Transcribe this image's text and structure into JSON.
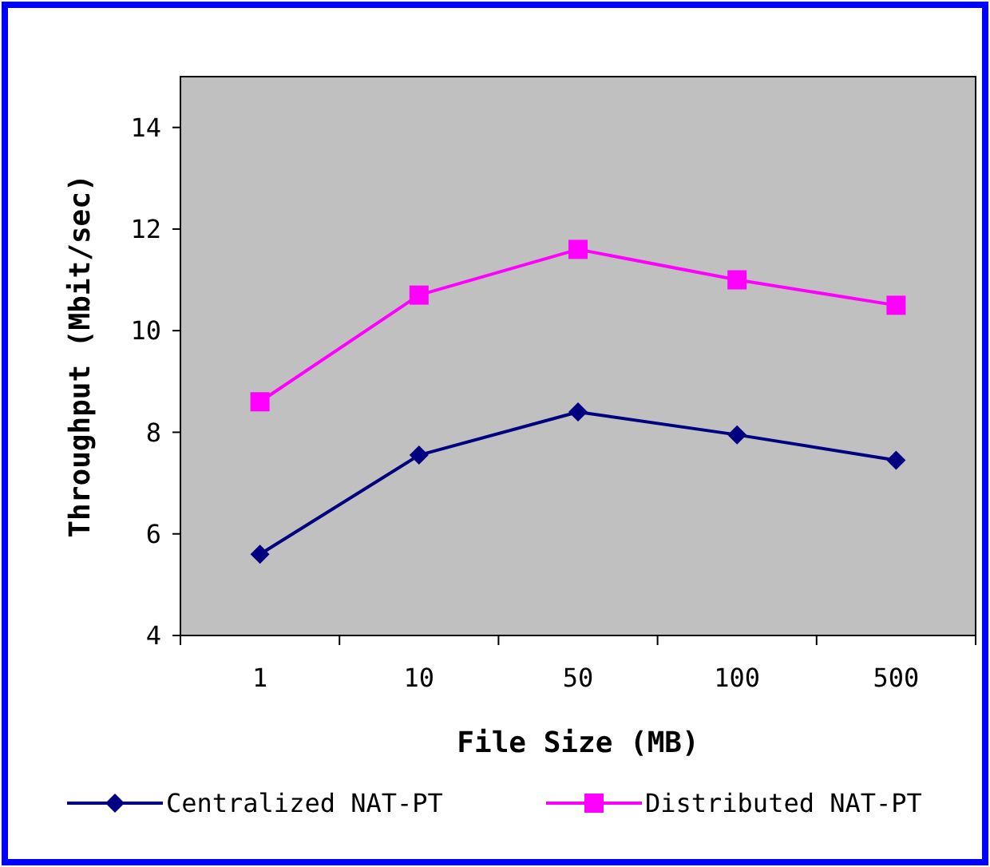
{
  "chart_data": {
    "type": "line",
    "xlabel": "File Size (MB)",
    "ylabel": "Throughput (Mbit/sec)",
    "categories": [
      "1",
      "10",
      "50",
      "100",
      "500"
    ],
    "series": [
      {
        "name": "Centralized NAT-PT",
        "color": "#000080",
        "marker": "diamond",
        "values": [
          5.6,
          7.55,
          8.4,
          7.95,
          7.45
        ]
      },
      {
        "name": "Distributed NAT-PT",
        "color": "#ff00ff",
        "marker": "square",
        "values": [
          8.6,
          10.7,
          11.6,
          11.0,
          10.5
        ]
      }
    ],
    "ylim": [
      4,
      15
    ],
    "yticks": [
      4,
      6,
      8,
      10,
      12,
      14
    ],
    "grid": false,
    "legend": "bottom"
  }
}
